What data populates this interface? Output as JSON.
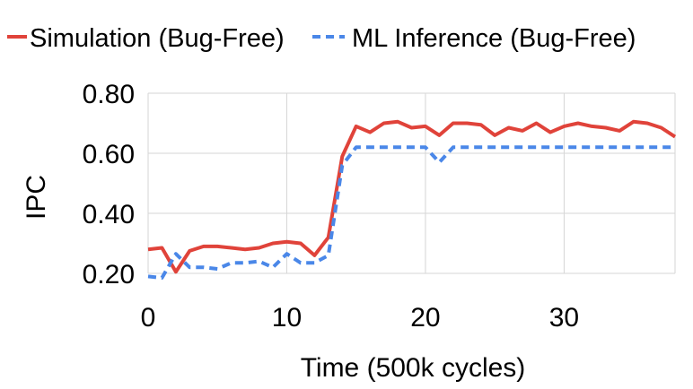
{
  "chart_data": {
    "type": "line",
    "xlabel": "Time (500k cycles)",
    "ylabel": "IPC",
    "xlim": [
      0,
      38
    ],
    "ylim": [
      0.2,
      0.8
    ],
    "x_ticks": [
      0,
      10,
      20,
      30
    ],
    "x_tick_labels": [
      "0",
      "10",
      "20",
      "30"
    ],
    "y_ticks": [
      0.2,
      0.4,
      0.6,
      0.8
    ],
    "y_tick_labels": [
      "0.20",
      "0.40",
      "0.60",
      "0.80"
    ],
    "grid": {
      "vertical": true,
      "horizontal": true
    },
    "legend_position": "top",
    "series": [
      {
        "name": "Simulation (Bug-Free)",
        "color": "#e0433a",
        "dash": "solid",
        "x": [
          0,
          1,
          2,
          3,
          4,
          5,
          6,
          7,
          8,
          9,
          10,
          11,
          12,
          13,
          14,
          15,
          16,
          17,
          18,
          19,
          20,
          21,
          22,
          23,
          24,
          25,
          26,
          27,
          28,
          29,
          30,
          31,
          32,
          33,
          34,
          35,
          36,
          37,
          38
        ],
        "values": [
          0.28,
          0.285,
          0.205,
          0.275,
          0.29,
          0.29,
          0.285,
          0.28,
          0.285,
          0.3,
          0.305,
          0.3,
          0.26,
          0.32,
          0.59,
          0.69,
          0.67,
          0.7,
          0.705,
          0.685,
          0.69,
          0.66,
          0.7,
          0.7,
          0.695,
          0.66,
          0.685,
          0.675,
          0.7,
          0.67,
          0.69,
          0.7,
          0.69,
          0.685,
          0.675,
          0.705,
          0.7,
          0.685,
          0.655
        ]
      },
      {
        "name": "ML Inference (Bug-Free)",
        "color": "#4a87e8",
        "dash": "dashed",
        "x": [
          0,
          1,
          2,
          3,
          4,
          5,
          6,
          7,
          8,
          9,
          10,
          11,
          12,
          13,
          14,
          15,
          16,
          17,
          18,
          19,
          20,
          21,
          22,
          23,
          24,
          25,
          26,
          27,
          28,
          29,
          30,
          31,
          32,
          33,
          34,
          35,
          36,
          37,
          38
        ],
        "values": [
          0.19,
          0.185,
          0.265,
          0.22,
          0.22,
          0.215,
          0.235,
          0.235,
          0.24,
          0.22,
          0.265,
          0.235,
          0.235,
          0.26,
          0.56,
          0.62,
          0.62,
          0.62,
          0.62,
          0.62,
          0.62,
          0.57,
          0.62,
          0.62,
          0.62,
          0.62,
          0.62,
          0.62,
          0.62,
          0.62,
          0.62,
          0.62,
          0.62,
          0.62,
          0.62,
          0.62,
          0.62,
          0.62,
          0.62
        ]
      }
    ]
  }
}
